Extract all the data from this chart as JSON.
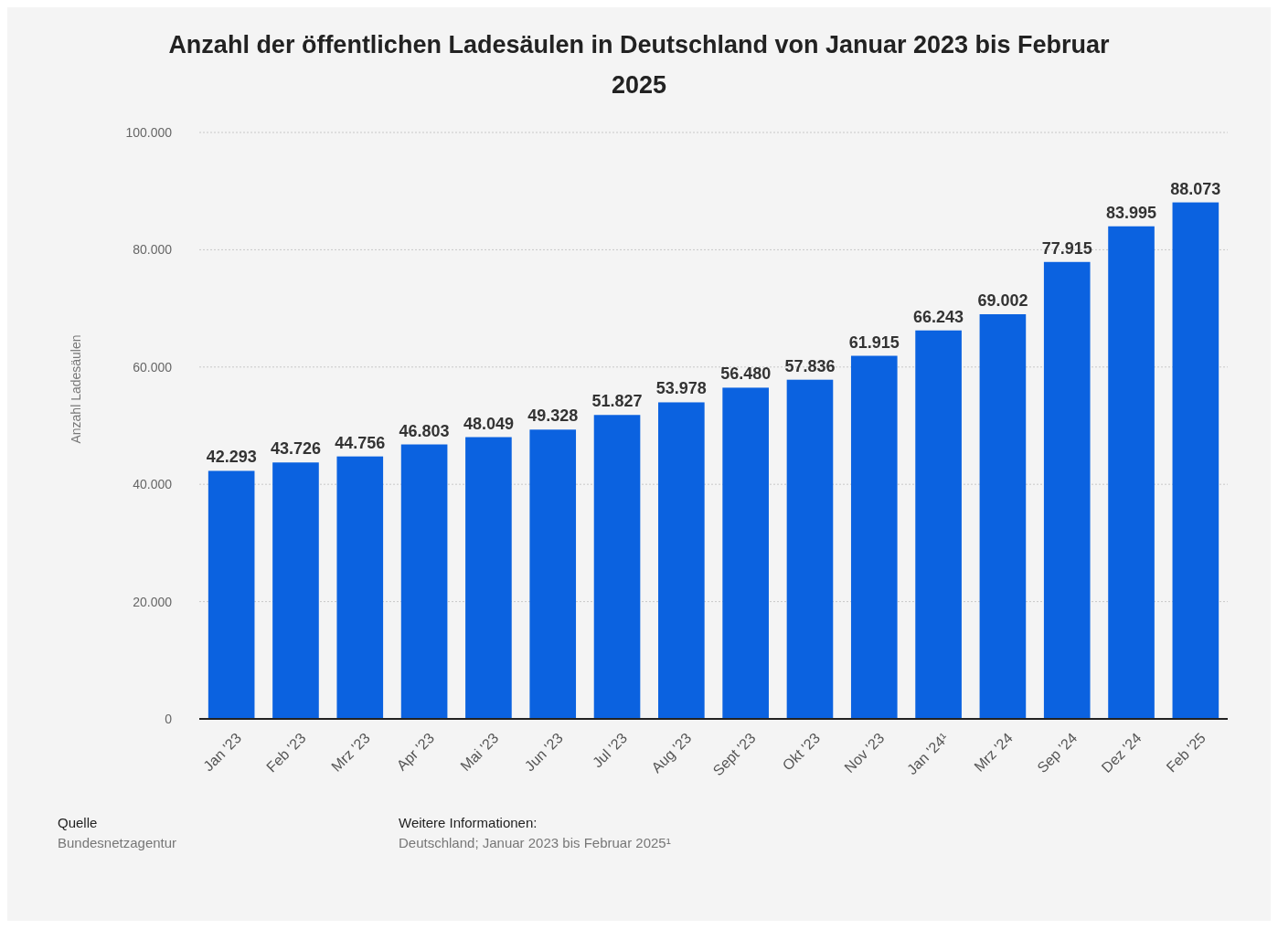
{
  "chart_data": {
    "type": "bar",
    "title": "Anzahl der öffentlichen Ladesäulen in Deutschland von Januar 2023 bis Februar 2025",
    "ylabel": "Anzahl Ladesäulen",
    "categories": [
      "Jan '23",
      "Feb '23",
      "Mrz '23",
      "Apr '23",
      "Mai '23",
      "Jun '23",
      "Jul '23",
      "Aug '23",
      "Sept '23",
      "Okt '23",
      "Nov '23",
      "Jan '24¹",
      "Mrz '24",
      "Sep '24",
      "Dez '24",
      "Feb '25"
    ],
    "values": [
      42293,
      43726,
      44756,
      46803,
      48049,
      49328,
      51827,
      53978,
      56480,
      57836,
      61915,
      66243,
      69002,
      77915,
      83995,
      88073
    ],
    "value_labels": [
      "42.293",
      "43.726",
      "44.756",
      "46.803",
      "48.049",
      "49.328",
      "51.827",
      "53.978",
      "56.480",
      "57.836",
      "61.915",
      "66.243",
      "69.002",
      "77.915",
      "83.995",
      "88.073"
    ],
    "color": "#0b62e0",
    "ylim": [
      0,
      100000
    ],
    "yticks": [
      0,
      {
        "value": 20000,
        "label": "20.000"
      },
      {
        "value": 40000,
        "label": "40.000"
      },
      {
        "value": 60000,
        "label": "60.000"
      },
      {
        "value": 80000,
        "label": "80.000"
      },
      {
        "value": 100000,
        "label": "100.000"
      }
    ],
    "grid": "y",
    "annotations": [
      "Quelle",
      "Bundesnetzagentur",
      "Weitere Informationen:",
      "Deutschland; Januar 2023 bis Februar 2025¹"
    ]
  }
}
